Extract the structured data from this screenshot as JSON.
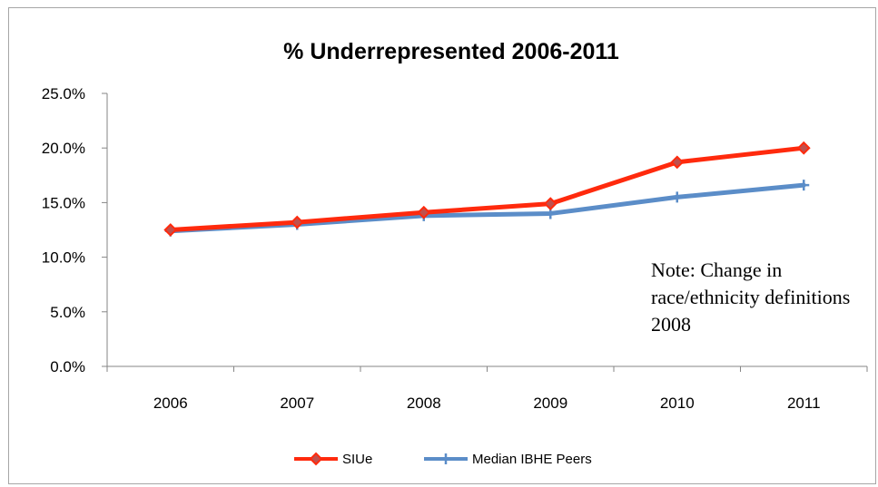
{
  "chart_data": {
    "type": "line",
    "title": "% Underrepresented 2006-2011",
    "categories": [
      "2006",
      "2007",
      "2008",
      "2009",
      "2010",
      "2011"
    ],
    "y_ticks": [
      "0.0%",
      "5.0%",
      "10.0%",
      "15.0%",
      "20.0%",
      "25.0%"
    ],
    "ylim": [
      0,
      25
    ],
    "grid": false,
    "legend_position": "bottom",
    "series": [
      {
        "name": "SIUe",
        "values": [
          12.5,
          13.2,
          14.1,
          14.9,
          18.7,
          20.0
        ],
        "color": "#ff2a0d",
        "marker": "diamond"
      },
      {
        "name": "Median IBHE Peers",
        "values": [
          12.4,
          13.0,
          13.8,
          14.0,
          15.5,
          16.6
        ],
        "color": "#5b8dc8",
        "marker": "plus"
      }
    ],
    "annotation": "Note:  Change in race/ethnicity definitions 2008"
  }
}
